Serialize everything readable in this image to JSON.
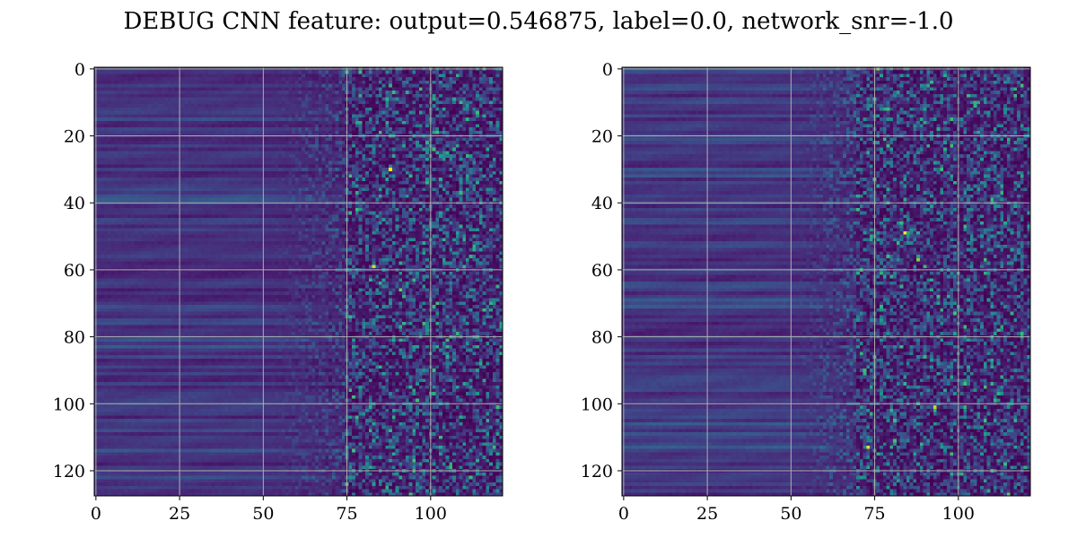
{
  "figure": {
    "title": "DEBUG CNN feature: output=0.546875, label=0.0, network_snr=-1.0"
  },
  "colormap": {
    "name": "viridis",
    "stops": [
      "#440154",
      "#482777",
      "#3e4989",
      "#31688e",
      "#26828e",
      "#1f9e89",
      "#35b779",
      "#6ece58",
      "#b5de2b",
      "#fde725"
    ]
  },
  "chart_data": [
    {
      "type": "heatmap",
      "panel": "left",
      "title": "",
      "xlabel": "",
      "ylabel": "",
      "rows": 128,
      "cols": 122,
      "xlim": [
        -0.5,
        121.5
      ],
      "ylim": [
        127.5,
        -0.5
      ],
      "xticks": [
        0,
        25,
        50,
        75,
        100
      ],
      "yticks": [
        0,
        20,
        40,
        60,
        80,
        100,
        120
      ],
      "grid": true,
      "grid_color": "#b0b0b0",
      "value_range": [
        0,
        1
      ],
      "description_of_pattern": null,
      "left_region_end_col": 50,
      "transition_end_col": 75,
      "smooth_level": 0.13,
      "noise_level": 0.28,
      "bright_spots": [
        {
          "row": 30,
          "col": 88,
          "value": 1.0
        },
        {
          "row": 59,
          "col": 83,
          "value": 0.92
        },
        {
          "row": 66,
          "col": 91,
          "value": 0.78
        },
        {
          "row": 127,
          "col": 94,
          "value": 0.7
        },
        {
          "row": 117,
          "col": 95,
          "value": 0.72
        }
      ],
      "seed": 17
    },
    {
      "type": "heatmap",
      "panel": "right",
      "title": "",
      "xlabel": "",
      "ylabel": "",
      "rows": 128,
      "cols": 122,
      "xlim": [
        -0.5,
        121.5
      ],
      "ylim": [
        127.5,
        -0.5
      ],
      "xticks": [
        0,
        25,
        50,
        75,
        100
      ],
      "yticks": [
        0,
        20,
        40,
        60,
        80,
        100,
        120
      ],
      "grid": true,
      "grid_color": "#b0b0b0",
      "value_range": [
        0,
        1
      ],
      "description_of_pattern": null,
      "left_region_end_col": 50,
      "transition_end_col": 70,
      "smooth_level": 0.14,
      "noise_level": 0.34,
      "bright_spots": [
        {
          "row": 49,
          "col": 84,
          "value": 1.0
        },
        {
          "row": 113,
          "col": 73,
          "value": 0.95
        },
        {
          "row": 101,
          "col": 93,
          "value": 0.9
        },
        {
          "row": 0,
          "col": 76,
          "value": 0.85
        },
        {
          "row": 57,
          "col": 88,
          "value": 0.8
        },
        {
          "row": 127,
          "col": 115,
          "value": 0.75
        }
      ],
      "seed": 91
    }
  ]
}
